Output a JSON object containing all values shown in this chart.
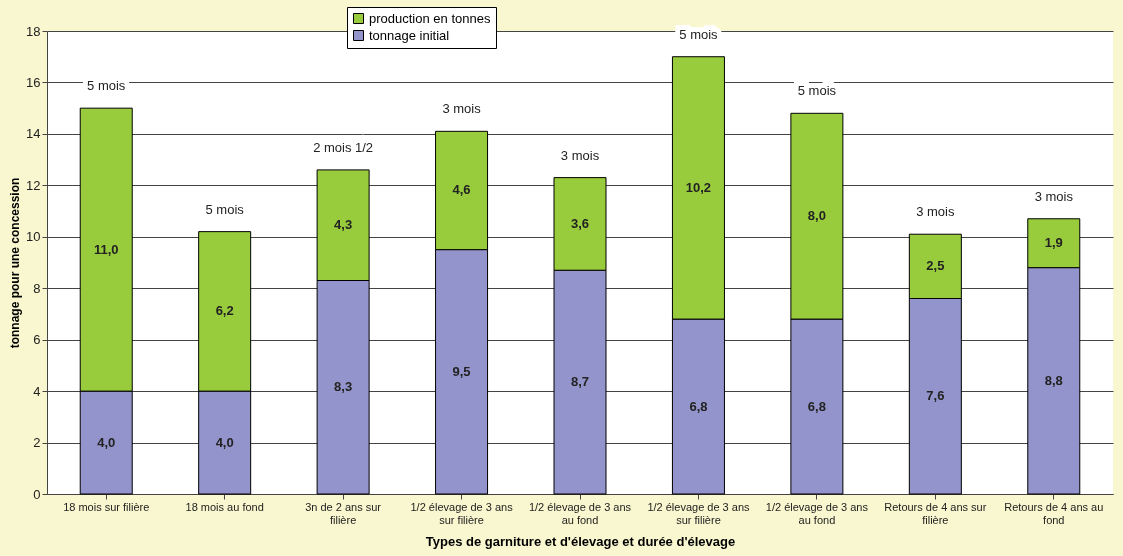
{
  "chart_data": {
    "type": "bar",
    "stacked": true,
    "xlabel": "Types de garniture et d'élevage et  durée d'élevage",
    "ylabel": "tonnage pour une concession",
    "categories": [
      "18 mois sur filière",
      "18 mois au fond",
      "3n de 2 ans sur filière",
      "1/2 élevage de 3 ans sur filière",
      "1/2 élevage de 3 ans au fond",
      "1/2 élevage de 3 ans sur filière",
      "1/2 élevage de 3 ans au fond",
      "Retours de 4 ans sur filière",
      "Retours de 4 ans au fond"
    ],
    "series": [
      {
        "name": "tonnage initial",
        "color": "#9494cc",
        "values": [
          4.0,
          4.0,
          8.3,
          9.5,
          8.7,
          6.8,
          6.8,
          7.6,
          8.8
        ],
        "value_labels": [
          "4,0",
          "4,0",
          "8,3",
          "9,5",
          "8,7",
          "6,8",
          "6,8",
          "7,6",
          "8,8"
        ]
      },
      {
        "name": "production en tonnes",
        "color": "#99cc3d",
        "values": [
          11.0,
          6.2,
          4.3,
          4.6,
          3.6,
          10.2,
          8.0,
          2.5,
          1.9
        ],
        "value_labels": [
          "11,0",
          "6,2",
          "4,3",
          "4,6",
          "3,6",
          "10,2",
          "8,0",
          "2,5",
          "1,9"
        ]
      }
    ],
    "ylim": [
      0,
      18
    ],
    "yticks": [
      0,
      2,
      4,
      6,
      8,
      10,
      12,
      14,
      16,
      18
    ],
    "grid": "y",
    "legend": "top",
    "annotations": [
      "5 mois",
      "5 mois",
      "2 mois 1/2",
      "3 mois",
      "3 mois",
      "5 mois",
      "5 mois",
      "3 mois",
      "3 mois"
    ]
  }
}
